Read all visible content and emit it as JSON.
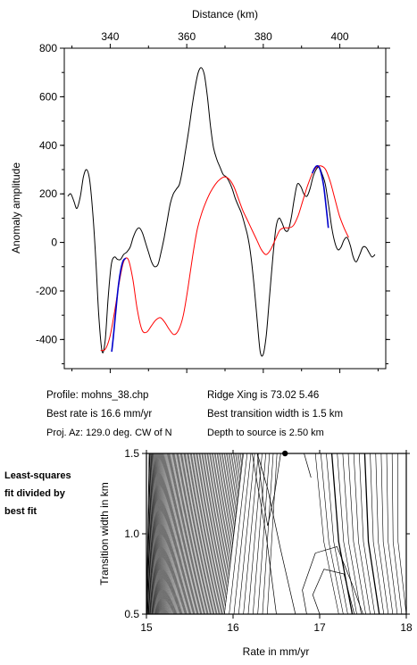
{
  "chart_data": [
    {
      "type": "line",
      "xlabel": "Distance (km)",
      "ylabel": "Anomaly amplitude",
      "xlim": [
        328,
        412
      ],
      "ylim": [
        -520,
        800
      ],
      "xticks": [
        340,
        360,
        380,
        400
      ],
      "yticks": [
        -400,
        -200,
        0,
        200,
        400,
        600,
        800
      ],
      "grid": false,
      "legend": "none",
      "colors": {
        "observed": "#000000",
        "model": "#ff0000",
        "fit_window": "#0000cc"
      },
      "series": [
        {
          "key": "observed",
          "color": "#000000",
          "x": [
            328.9,
            329.7,
            330.5,
            331.3,
            332.2,
            333.0,
            333.8,
            334.6,
            335.4,
            336.2,
            337.0,
            337.9,
            338.7,
            339.5,
            340.3,
            341.1,
            341.9,
            342.7,
            343.5,
            344.3,
            345.2,
            346.0,
            346.8,
            347.6,
            348.4,
            349.2,
            350.0,
            350.8,
            351.6,
            352.5,
            353.3,
            354.1,
            354.9,
            355.7,
            356.5,
            357.3,
            358.1,
            358.9,
            359.7,
            360.6,
            361.4,
            362.2,
            363.0,
            363.8,
            364.6,
            365.4,
            366.2,
            367.0,
            367.9,
            368.7,
            369.5,
            370.3,
            371.1,
            371.9,
            372.7,
            373.5,
            374.3,
            375.2,
            376.0,
            376.8,
            377.6,
            378.4,
            379.2,
            380.0,
            380.8,
            381.6,
            382.5,
            383.3,
            384.1,
            384.9,
            385.7,
            386.5,
            387.3,
            388.1,
            388.9,
            389.8,
            390.6,
            391.4,
            392.2,
            393.0,
            393.8,
            394.6,
            395.4,
            396.2,
            397.1,
            397.9,
            398.7,
            399.5,
            400.3,
            401.1,
            401.9,
            402.7,
            403.5,
            404.3,
            405.2,
            406.0,
            406.8,
            407.6,
            408.4,
            409.2
          ],
          "y": [
            190,
            200,
            170,
            140,
            190,
            270,
            300,
            260,
            130,
            -60,
            -300,
            -450,
            -400,
            -220,
            -90,
            -60,
            -70,
            -70,
            -50,
            -40,
            -20,
            20,
            50,
            60,
            40,
            0,
            -40,
            -80,
            -100,
            -90,
            -40,
            20,
            90,
            160,
            200,
            220,
            240,
            300,
            380,
            470,
            560,
            640,
            700,
            720,
            690,
            600,
            480,
            390,
            340,
            310,
            280,
            270,
            250,
            220,
            180,
            150,
            120,
            70,
            20,
            -60,
            -180,
            -320,
            -450,
            -460,
            -380,
            -230,
            -60,
            60,
            100,
            80,
            50,
            50,
            100,
            180,
            240,
            230,
            200,
            190,
            220,
            270,
            300,
            310,
            280,
            240,
            150,
            60,
            0,
            -30,
            -20,
            10,
            20,
            -10,
            -60,
            -80,
            -50,
            -20,
            -20,
            -40,
            -60,
            -50
          ]
        },
        {
          "key": "model",
          "color": "#ff0000",
          "x": [
            337.5,
            338.7,
            339.9,
            341.1,
            342.3,
            343.5,
            344.7,
            345.9,
            347.1,
            348.3,
            349.5,
            350.7,
            351.9,
            353.1,
            354.3,
            355.5,
            356.7,
            357.9,
            359.1,
            360.3,
            361.5,
            362.7,
            363.9,
            365.1,
            366.3,
            367.5,
            368.7,
            369.9,
            371.1,
            372.3,
            373.5,
            374.7,
            375.9,
            377.1,
            378.3,
            379.5,
            380.7,
            381.9,
            383.1,
            384.3,
            385.5,
            386.7,
            387.9,
            389.1,
            390.3,
            391.5,
            392.7,
            393.9,
            395.1,
            396.3,
            397.5,
            398.7,
            399.9,
            401.1,
            402.3
          ],
          "y": [
            -445,
            -440,
            -390,
            -290,
            -170,
            -80,
            -70,
            -150,
            -280,
            -360,
            -370,
            -345,
            -320,
            -310,
            -330,
            -360,
            -380,
            -360,
            -300,
            -190,
            -60,
            50,
            120,
            170,
            210,
            240,
            260,
            270,
            260,
            230,
            180,
            130,
            90,
            50,
            10,
            -30,
            -50,
            -30,
            10,
            50,
            60,
            60,
            70,
            110,
            170,
            230,
            280,
            310,
            315,
            300,
            250,
            180,
            110,
            60,
            20
          ]
        },
        {
          "key": "fit_window",
          "color": "#0000cc",
          "x": [
            340.4,
            341.0,
            341.6,
            342.2,
            342.8,
            343.4,
            344.1
          ],
          "y": [
            -450,
            -360,
            -260,
            -170,
            -110,
            -75,
            -65
          ]
        },
        {
          "key": "fit_window",
          "color": "#0000cc",
          "x": [
            392.8,
            393.4,
            394.0,
            394.6,
            395.2,
            395.8,
            396.4,
            397.0
          ],
          "y": [
            285,
            305,
            315,
            310,
            280,
            230,
            150,
            60
          ]
        }
      ]
    },
    {
      "type": "contour",
      "xlabel": "Rate in mm/yr",
      "ylabel": "Transition width in km",
      "xlim": [
        15,
        18
      ],
      "ylim": [
        0.5,
        1.5
      ],
      "xticks": [
        15,
        16,
        17,
        18
      ],
      "yticks": [
        0.5,
        1.0,
        1.5
      ],
      "grid": false,
      "best_fit": {
        "rate": 16.6,
        "width": 1.5
      },
      "contour_slopes": {
        "left_band": {
          "rate_at_bottom": [
            15.0,
            15.9
          ],
          "rate_at_top": [
            15.05,
            16.1
          ]
        },
        "right_band": {
          "rate_at_bottom": [
            17.3,
            18.0
          ],
          "rate_at_top": [
            17.0,
            17.9
          ]
        }
      }
    }
  ],
  "info": {
    "profile": "Profile: mohns_38.chp",
    "best_rate": "Best rate is 16.6 mm/yr",
    "proj_az": "Proj. Az: 129.0 deg. CW of N",
    "ridge_xing": "Ridge Xing is 73.02 5.46",
    "best_width": "Best transition width is 1.5 km",
    "depth": "Depth to source is   2.50 km"
  },
  "side_caption": "Least-squares\nfit divided by\nbest fit"
}
